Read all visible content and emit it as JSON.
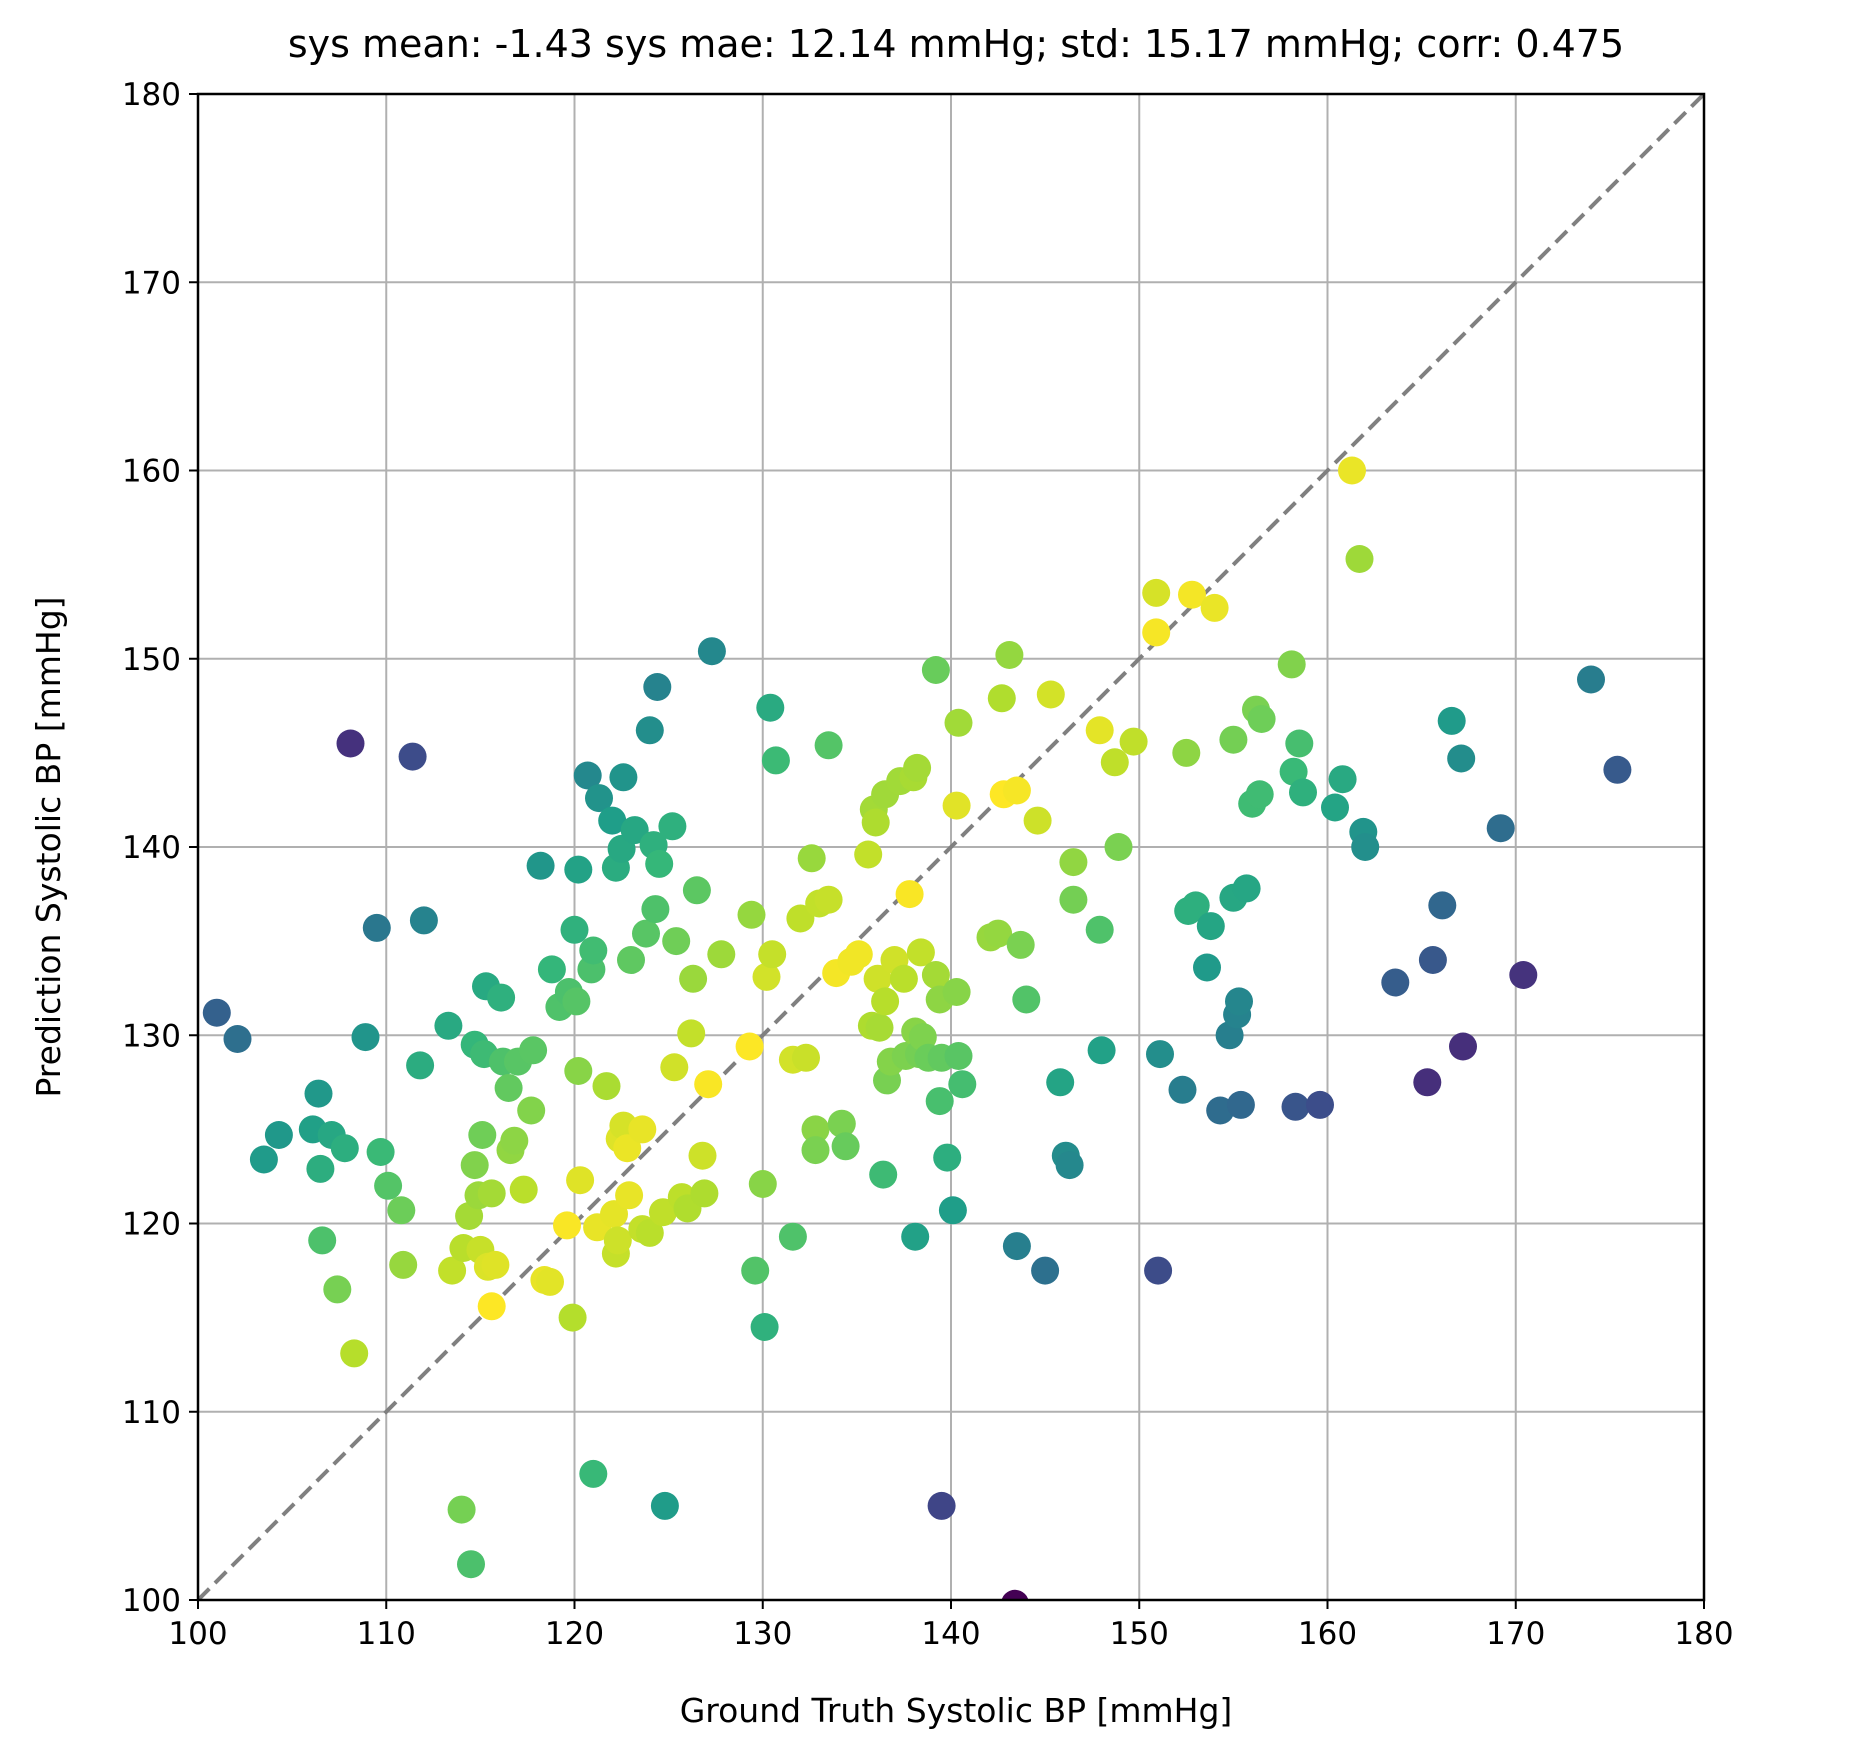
{
  "chart_data": {
    "type": "scatter",
    "title": "sys mean: -1.43 sys mae: 12.14 mmHg; std: 15.17 mmHg; corr: 0.475",
    "xlabel": "Ground Truth Systolic BP [mmHg]",
    "ylabel": "Prediction Systolic BP [mmHg]",
    "xlim": [
      100,
      180
    ],
    "ylim": [
      100,
      180
    ],
    "xticks": [
      "100",
      "110",
      "120",
      "130",
      "140",
      "150",
      "160",
      "170",
      "180"
    ],
    "yticks": [
      "100",
      "110",
      "120",
      "130",
      "140",
      "150",
      "160",
      "170",
      "180"
    ],
    "grid": true,
    "colormap": "viridis",
    "color_encoding": "absolute error (yellow = small error, purple = large error)",
    "reference_line": {
      "style": "dashed",
      "color": "#808080",
      "from": [
        100,
        100
      ],
      "to": [
        180,
        180
      ]
    },
    "colors": {
      "grid": "#b0b0b0",
      "reference": "#808080",
      "viridis": [
        "#440154",
        "#482878",
        "#3e4989",
        "#31688e",
        "#26828e",
        "#1f9e89",
        "#35b779",
        "#6ece58",
        "#b5de2b",
        "#fde725"
      ]
    },
    "points": [
      [
        101.0,
        131.2
      ],
      [
        102.1,
        129.8
      ],
      [
        103.5,
        123.4
      ],
      [
        104.3,
        124.7
      ],
      [
        106.1,
        125.0
      ],
      [
        106.4,
        126.9
      ],
      [
        106.5,
        122.9
      ],
      [
        106.6,
        119.1
      ],
      [
        107.1,
        124.7
      ],
      [
        107.4,
        116.5
      ],
      [
        107.8,
        124.0
      ],
      [
        108.3,
        113.1
      ],
      [
        108.1,
        145.5
      ],
      [
        108.9,
        129.9
      ],
      [
        109.5,
        135.7
      ],
      [
        109.7,
        123.8
      ],
      [
        110.1,
        122.0
      ],
      [
        110.8,
        120.7
      ],
      [
        110.9,
        117.8
      ],
      [
        111.4,
        144.8
      ],
      [
        111.8,
        128.4
      ],
      [
        112.0,
        136.1
      ],
      [
        113.3,
        130.5
      ],
      [
        113.5,
        117.5
      ],
      [
        114.0,
        104.8
      ],
      [
        114.1,
        118.7
      ],
      [
        114.4,
        120.4
      ],
      [
        114.5,
        101.9
      ],
      [
        114.7,
        129.5
      ],
      [
        114.7,
        123.1
      ],
      [
        114.9,
        121.5
      ],
      [
        115.0,
        118.6
      ],
      [
        115.1,
        124.7
      ],
      [
        115.2,
        129.0
      ],
      [
        115.3,
        132.6
      ],
      [
        115.4,
        117.7
      ],
      [
        115.6,
        121.6
      ],
      [
        115.6,
        115.6
      ],
      [
        115.8,
        117.8
      ],
      [
        116.1,
        132.0
      ],
      [
        116.2,
        128.6
      ],
      [
        116.5,
        127.2
      ],
      [
        116.6,
        123.9
      ],
      [
        116.8,
        124.4
      ],
      [
        117.0,
        128.6
      ],
      [
        117.3,
        121.8
      ],
      [
        117.7,
        126.0
      ],
      [
        117.8,
        129.2
      ],
      [
        118.2,
        139.0
      ],
      [
        118.4,
        117.0
      ],
      [
        118.7,
        116.9
      ],
      [
        118.8,
        133.5
      ],
      [
        119.2,
        131.5
      ],
      [
        119.6,
        119.9
      ],
      [
        119.7,
        132.3
      ],
      [
        119.9,
        115.0
      ],
      [
        120.0,
        135.6
      ],
      [
        120.1,
        131.8
      ],
      [
        120.2,
        128.1
      ],
      [
        120.2,
        138.8
      ],
      [
        120.3,
        122.3
      ],
      [
        120.7,
        143.8
      ],
      [
        120.9,
        133.5
      ],
      [
        121.0,
        134.5
      ],
      [
        121.0,
        106.7
      ],
      [
        121.2,
        119.8
      ],
      [
        121.3,
        142.6
      ],
      [
        121.7,
        127.3
      ],
      [
        122.0,
        141.4
      ],
      [
        122.1,
        120.5
      ],
      [
        122.2,
        138.9
      ],
      [
        122.2,
        118.4
      ],
      [
        122.3,
        119.1
      ],
      [
        122.4,
        124.5
      ],
      [
        122.5,
        139.9
      ],
      [
        122.6,
        143.7
      ],
      [
        122.6,
        125.2
      ],
      [
        122.8,
        124.0
      ],
      [
        122.9,
        121.5
      ],
      [
        123.0,
        134.0
      ],
      [
        123.2,
        140.9
      ],
      [
        123.6,
        119.7
      ],
      [
        123.6,
        125.0
      ],
      [
        123.8,
        135.4
      ],
      [
        124.0,
        119.5
      ],
      [
        124.0,
        146.2
      ],
      [
        124.2,
        140.1
      ],
      [
        124.3,
        136.7
      ],
      [
        124.4,
        148.5
      ],
      [
        124.5,
        139.1
      ],
      [
        124.7,
        120.6
      ],
      [
        124.8,
        105.0
      ],
      [
        125.2,
        141.1
      ],
      [
        125.3,
        128.3
      ],
      [
        125.4,
        135.0
      ],
      [
        125.7,
        121.4
      ],
      [
        126.0,
        120.8
      ],
      [
        126.2,
        130.1
      ],
      [
        126.3,
        133.0
      ],
      [
        126.5,
        137.7
      ],
      [
        126.8,
        123.6
      ],
      [
        126.9,
        121.6
      ],
      [
        127.1,
        127.4
      ],
      [
        127.3,
        150.4
      ],
      [
        127.8,
        134.3
      ],
      [
        129.3,
        129.4
      ],
      [
        129.4,
        136.4
      ],
      [
        129.6,
        117.5
      ],
      [
        130.1,
        114.5
      ],
      [
        130.0,
        122.1
      ],
      [
        130.2,
        133.1
      ],
      [
        130.5,
        134.3
      ],
      [
        130.4,
        147.4
      ],
      [
        130.7,
        144.6
      ],
      [
        131.6,
        119.3
      ],
      [
        131.6,
        128.7
      ],
      [
        132.0,
        136.2
      ],
      [
        132.3,
        128.8
      ],
      [
        132.6,
        139.4
      ],
      [
        132.8,
        125.0
      ],
      [
        132.8,
        123.9
      ],
      [
        133.0,
        137.0
      ],
      [
        133.5,
        137.2
      ],
      [
        133.5,
        145.4
      ],
      [
        133.9,
        133.3
      ],
      [
        134.2,
        125.3
      ],
      [
        134.4,
        124.1
      ],
      [
        134.7,
        133.9
      ],
      [
        135.1,
        134.3
      ],
      [
        135.6,
        139.6
      ],
      [
        135.8,
        130.5
      ],
      [
        135.9,
        142.0
      ],
      [
        136.0,
        141.3
      ],
      [
        136.1,
        133.0
      ],
      [
        136.2,
        130.4
      ],
      [
        136.4,
        122.6
      ],
      [
        136.5,
        131.8
      ],
      [
        136.5,
        142.8
      ],
      [
        136.6,
        127.6
      ],
      [
        136.8,
        128.6
      ],
      [
        137.0,
        134.0
      ],
      [
        137.3,
        143.5
      ],
      [
        137.5,
        133.0
      ],
      [
        137.6,
        128.9
      ],
      [
        137.8,
        137.5
      ],
      [
        138.0,
        143.7
      ],
      [
        138.1,
        130.2
      ],
      [
        138.1,
        119.3
      ],
      [
        138.2,
        144.2
      ],
      [
        138.3,
        129.0
      ],
      [
        138.4,
        134.4
      ],
      [
        138.5,
        129.9
      ],
      [
        138.8,
        128.8
      ],
      [
        139.2,
        149.4
      ],
      [
        139.2,
        133.2
      ],
      [
        139.4,
        126.5
      ],
      [
        139.4,
        131.9
      ],
      [
        139.5,
        128.8
      ],
      [
        139.5,
        105.0
      ],
      [
        139.8,
        123.5
      ],
      [
        140.1,
        120.7
      ],
      [
        140.3,
        142.2
      ],
      [
        140.3,
        132.3
      ],
      [
        140.4,
        146.6
      ],
      [
        140.4,
        128.9
      ],
      [
        140.6,
        127.4
      ],
      [
        142.1,
        135.2
      ],
      [
        142.5,
        135.4
      ],
      [
        142.7,
        147.9
      ],
      [
        142.8,
        142.8
      ],
      [
        143.1,
        150.2
      ],
      [
        143.4,
        99.8
      ],
      [
        143.5,
        118.8
      ],
      [
        143.5,
        143.0
      ],
      [
        143.7,
        134.8
      ],
      [
        144.0,
        131.9
      ],
      [
        144.6,
        141.4
      ],
      [
        145.0,
        117.5
      ],
      [
        145.3,
        148.1
      ],
      [
        145.8,
        127.5
      ],
      [
        146.1,
        123.6
      ],
      [
        146.3,
        123.1
      ],
      [
        146.5,
        139.2
      ],
      [
        146.5,
        137.2
      ],
      [
        147.9,
        146.2
      ],
      [
        147.9,
        135.6
      ],
      [
        148.0,
        129.2
      ],
      [
        148.7,
        144.5
      ],
      [
        148.9,
        140.0
      ],
      [
        149.7,
        145.6
      ],
      [
        150.9,
        153.5
      ],
      [
        150.9,
        151.4
      ],
      [
        151.0,
        117.5
      ],
      [
        151.1,
        129.0
      ],
      [
        152.3,
        127.1
      ],
      [
        152.5,
        145.0
      ],
      [
        152.6,
        136.6
      ],
      [
        152.8,
        153.4
      ],
      [
        153.0,
        136.9
      ],
      [
        153.6,
        133.6
      ],
      [
        153.8,
        135.8
      ],
      [
        154.0,
        152.7
      ],
      [
        154.3,
        126.0
      ],
      [
        154.8,
        130.0
      ],
      [
        155.0,
        145.7
      ],
      [
        155.0,
        137.3
      ],
      [
        155.2,
        131.1
      ],
      [
        155.3,
        131.8
      ],
      [
        155.4,
        126.3
      ],
      [
        155.7,
        137.8
      ],
      [
        156.0,
        142.3
      ],
      [
        156.2,
        147.3
      ],
      [
        156.4,
        142.8
      ],
      [
        156.5,
        146.8
      ],
      [
        158.1,
        149.7
      ],
      [
        158.2,
        144.0
      ],
      [
        158.3,
        126.2
      ],
      [
        158.5,
        145.5
      ],
      [
        158.7,
        142.9
      ],
      [
        159.6,
        126.3
      ],
      [
        160.4,
        142.1
      ],
      [
        160.8,
        143.6
      ],
      [
        161.3,
        160.0
      ],
      [
        161.7,
        155.3
      ],
      [
        161.9,
        140.8
      ],
      [
        162.0,
        140.0
      ],
      [
        163.6,
        132.8
      ],
      [
        165.3,
        127.5
      ],
      [
        165.6,
        134.0
      ],
      [
        166.1,
        136.9
      ],
      [
        166.6,
        146.7
      ],
      [
        167.1,
        144.7
      ],
      [
        167.2,
        129.4
      ],
      [
        169.2,
        141.0
      ],
      [
        170.4,
        133.2
      ],
      [
        174.0,
        148.9
      ],
      [
        175.4,
        144.1
      ]
    ]
  }
}
